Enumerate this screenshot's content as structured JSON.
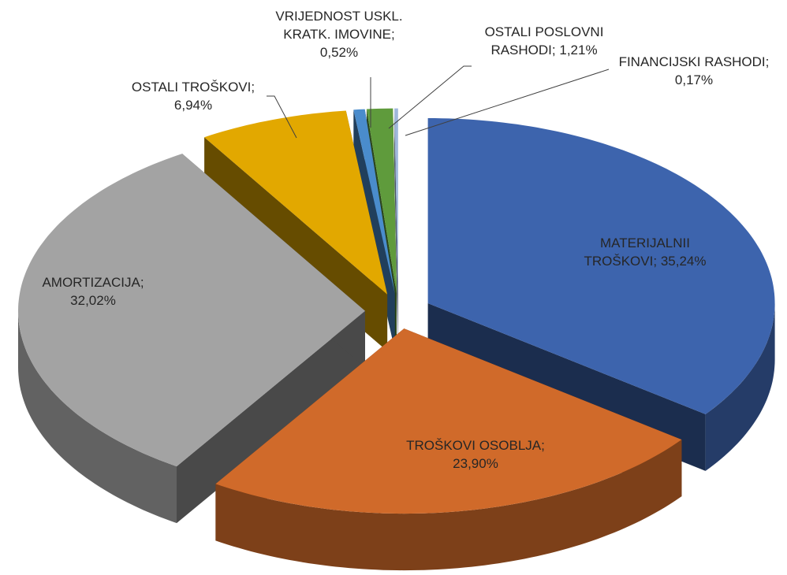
{
  "chart_data": {
    "type": "pie3d",
    "categories": [
      "MATERIJALNII TROŠKOVI",
      "TROŠKOVI OSOBLJA",
      "AMORTIZACIJA",
      "OSTALI TROŠKOVI",
      "VRIJEDNOST USKL. KRATK. IMOVINE",
      "OSTALI POSLOVNI RASHODI",
      "FINANCIJSKI RASHODI"
    ],
    "values": [
      35.24,
      23.9,
      32.02,
      6.94,
      0.52,
      1.21,
      0.17
    ],
    "value_labels": [
      "35,24%",
      "23,90%",
      "32,02%",
      "6,94%",
      "0,52%",
      "1,21%",
      "0,17%"
    ],
    "label_separator": "; ",
    "colors": [
      "#3d64ad",
      "#d06a2a",
      "#a3a3a3",
      "#e2a800",
      "#4a8ccc",
      "#5f9b3c",
      "#9fb8dc"
    ]
  }
}
